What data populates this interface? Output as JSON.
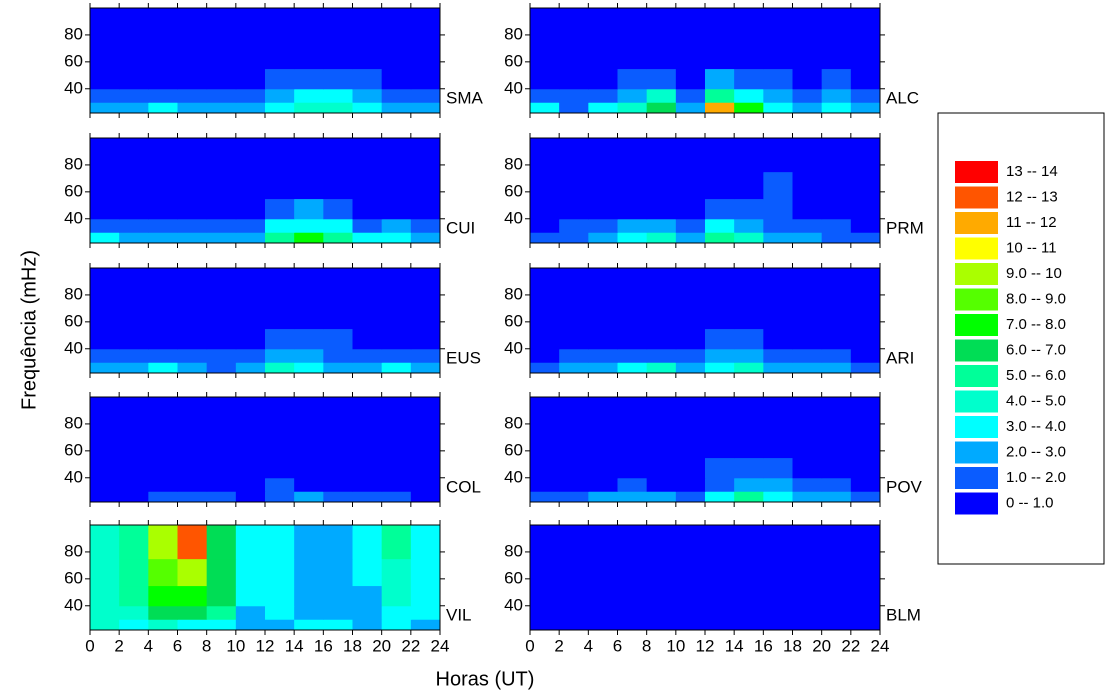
{
  "chart_data": {
    "type": "heatmap",
    "xlabel": "Horas (UT)",
    "ylabel": "Frequência (mHz)",
    "xlim": [
      0,
      24
    ],
    "xticks": [
      0,
      2,
      4,
      6,
      8,
      10,
      12,
      14,
      16,
      18,
      20,
      22,
      24
    ],
    "ylim": [
      22,
      100
    ],
    "yticks": [
      40,
      60,
      80
    ],
    "x_bins": [
      0,
      2,
      4,
      6,
      8,
      10,
      12,
      14,
      16,
      18,
      20,
      22,
      24
    ],
    "y_bins": [
      22,
      30,
      40,
      55,
      75,
      100
    ],
    "panels": [
      {
        "name": "SMA",
        "values": [
          [
            2.5,
            2,
            3,
            2,
            2.5,
            2,
            3,
            4,
            4,
            3,
            2.5,
            2
          ],
          [
            1.5,
            1,
            1.5,
            1,
            1,
            1,
            2,
            3,
            3,
            2,
            1.5,
            1
          ],
          [
            0.5,
            0.5,
            0.8,
            0.5,
            0.5,
            0.5,
            1.2,
            1.8,
            1.5,
            1,
            0.8,
            0.5
          ],
          [
            0.3,
            0.6,
            0.3,
            0.3,
            0.3,
            0.3,
            0.5,
            0.6,
            0.5,
            0.3,
            0.3,
            0.3
          ],
          [
            0.2,
            0.2,
            0.2,
            0.2,
            0.2,
            0.2,
            0.2,
            0.2,
            0.2,
            0.2,
            0.2,
            0.2
          ]
        ]
      },
      {
        "name": "ALC",
        "values": [
          [
            3,
            1.5,
            3,
            4,
            6,
            2.5,
            11,
            7,
            3,
            2,
            3,
            2
          ],
          [
            1.5,
            1,
            1.5,
            2.5,
            4,
            1.5,
            5,
            3.5,
            2,
            1,
            2,
            1.2
          ],
          [
            0.5,
            0.5,
            0.8,
            1,
            1.5,
            0.8,
            2,
            1.8,
            1,
            0.5,
            1,
            0.6
          ],
          [
            0.3,
            0.3,
            0.3,
            0.5,
            0.6,
            0.5,
            0.8,
            0.8,
            0.5,
            0.3,
            0.4,
            0.3
          ],
          [
            0.3,
            0.3,
            0.3,
            0.3,
            0.3,
            0.3,
            0.4,
            0.3,
            0.3,
            0.3,
            0.3,
            0.3
          ]
        ]
      },
      {
        "name": "CUI",
        "values": [
          [
            3.5,
            2,
            2.5,
            2,
            2,
            2.5,
            5,
            7,
            5,
            3,
            3,
            2
          ],
          [
            1.5,
            1,
            1,
            1,
            1,
            1.5,
            3,
            3.5,
            3,
            1.5,
            2,
            1
          ],
          [
            0.5,
            0.5,
            0.5,
            0.5,
            0.5,
            0.8,
            1.5,
            2,
            1.8,
            0.8,
            0.8,
            0.5
          ],
          [
            0.3,
            0.3,
            0.3,
            0.3,
            0.3,
            0.4,
            0.6,
            0.8,
            0.6,
            0.3,
            0.3,
            0.3
          ],
          [
            0.2,
            0.2,
            0.2,
            0.2,
            0.2,
            0.2,
            0.2,
            0.2,
            0.2,
            0.2,
            0.2,
            0.2
          ]
        ]
      },
      {
        "name": "PRM",
        "values": [
          [
            1.5,
            1.5,
            2.5,
            3.5,
            4,
            2,
            5,
            4,
            2.5,
            2,
            1.5,
            1.5
          ],
          [
            0.8,
            1,
            1.5,
            2,
            2,
            1.2,
            3,
            2.5,
            1.5,
            1,
            1,
            0.8
          ],
          [
            0.3,
            0.5,
            0.5,
            0.8,
            0.8,
            0.5,
            1.5,
            1.5,
            1.2,
            0.5,
            0.5,
            0.3
          ],
          [
            0.2,
            0.3,
            0.3,
            0.3,
            0.3,
            0.3,
            0.5,
            0.8,
            1,
            0.3,
            0.3,
            0.2
          ],
          [
            0.2,
            0.2,
            0.2,
            0.2,
            0.2,
            0.2,
            0.2,
            0.4,
            0.6,
            0.2,
            0.2,
            0.2
          ]
        ]
      },
      {
        "name": "EUS",
        "values": [
          [
            2.5,
            2,
            3,
            2,
            1.5,
            2,
            4,
            3,
            2,
            2.5,
            3,
            2
          ],
          [
            1.2,
            1,
            1.5,
            1,
            1,
            1,
            2,
            2,
            1.5,
            1.5,
            1.5,
            1
          ],
          [
            0.8,
            0.8,
            0.8,
            0.8,
            0.7,
            0.8,
            1.2,
            1.5,
            1,
            0.8,
            0.8,
            0.7
          ],
          [
            0.6,
            0.8,
            0.7,
            0.8,
            0.6,
            0.7,
            0.8,
            0.8,
            0.8,
            0.6,
            0.7,
            0.6
          ],
          [
            0.7,
            0.8,
            0.6,
            0.7,
            0.6,
            0.8,
            0.7,
            0.6,
            0.6,
            0.7,
            0.6,
            0.6
          ]
        ]
      },
      {
        "name": "ARI",
        "values": [
          [
            1.5,
            2,
            2,
            3,
            4,
            2,
            3.5,
            4,
            2.5,
            2,
            2,
            1.5
          ],
          [
            0.8,
            1,
            1,
            1.5,
            1.5,
            1,
            2,
            2,
            1.5,
            1,
            1,
            0.8
          ],
          [
            0.3,
            0.5,
            0.5,
            0.5,
            0.5,
            0.5,
            1,
            1,
            0.8,
            0.5,
            0.5,
            0.3
          ],
          [
            0.3,
            0.3,
            0.3,
            0.3,
            0.3,
            0.3,
            0.5,
            0.5,
            0.5,
            0.3,
            0.3,
            0.3
          ],
          [
            0.3,
            0.3,
            0.3,
            0.3,
            0.3,
            0.3,
            0.3,
            0.3,
            0.5,
            0.3,
            0.3,
            0.3
          ]
        ]
      },
      {
        "name": "COL",
        "values": [
          [
            0.8,
            0.8,
            1,
            1,
            1,
            0.8,
            1.5,
            2,
            1,
            1,
            1,
            0.8
          ],
          [
            0.3,
            0.3,
            0.5,
            0.5,
            0.5,
            0.5,
            1,
            0.8,
            0.5,
            0.5,
            0.5,
            0.3
          ],
          [
            0.2,
            0.2,
            0.3,
            0.3,
            0.3,
            0.3,
            0.4,
            0.3,
            0.3,
            0.3,
            0.3,
            0.2
          ],
          [
            0.2,
            0.2,
            0.2,
            0.2,
            0.2,
            0.2,
            0.3,
            0.2,
            0.2,
            0.2,
            0.2,
            0.2
          ],
          [
            0.2,
            0.2,
            0.2,
            0.2,
            0.2,
            0.2,
            0.2,
            0.2,
            0.2,
            0.2,
            0.2,
            0.2
          ]
        ]
      },
      {
        "name": "POV",
        "values": [
          [
            1.5,
            1.5,
            2,
            2.5,
            2,
            1.5,
            3,
            5,
            3,
            2,
            2,
            1.5
          ],
          [
            0.5,
            0.5,
            0.8,
            1,
            0.8,
            0.6,
            1.8,
            2.5,
            2,
            1,
            1,
            0.5
          ],
          [
            0.2,
            0.3,
            0.3,
            0.3,
            0.3,
            0.3,
            1,
            1.5,
            1.2,
            0.5,
            0.5,
            0.3
          ],
          [
            0.2,
            0.2,
            0.2,
            0.2,
            0.2,
            0.2,
            0.5,
            0.8,
            0.5,
            0.2,
            0.2,
            0.2
          ],
          [
            0.2,
            0.2,
            0.2,
            0.2,
            0.2,
            0.2,
            0.2,
            0.2,
            0.2,
            0.2,
            0.2,
            0.2
          ]
        ]
      },
      {
        "name": "VIL",
        "values": [
          [
            4,
            3.5,
            4,
            3.5,
            3,
            2,
            2.5,
            3.5,
            3,
            2.5,
            3,
            2.5
          ],
          [
            4,
            4,
            6,
            6,
            5,
            2.5,
            3,
            2,
            2.5,
            2.5,
            3.5,
            3
          ],
          [
            4.5,
            5,
            7,
            7,
            6,
            3,
            3,
            2,
            2,
            2.5,
            4,
            3
          ],
          [
            4.5,
            5,
            8,
            9,
            6,
            3,
            3.5,
            2.5,
            2.5,
            3,
            4.5,
            3
          ],
          [
            4,
            5,
            9,
            12,
            6,
            3,
            3,
            2.5,
            2.5,
            3,
            5,
            3
          ]
        ]
      },
      {
        "name": "BLM",
        "values": [
          [
            0.8,
            0.6,
            0.8,
            0.7,
            0.6,
            0.6,
            0.8,
            0.7,
            0.6,
            0.7,
            0.8,
            0.6
          ],
          [
            0.5,
            0.4,
            0.5,
            0.5,
            0.4,
            0.4,
            0.5,
            0.5,
            0.4,
            0.5,
            0.5,
            0.4
          ],
          [
            0.3,
            0.3,
            0.4,
            0.3,
            0.3,
            0.3,
            0.4,
            0.3,
            0.3,
            0.3,
            0.4,
            0.3
          ],
          [
            0.3,
            0.3,
            0.3,
            0.3,
            0.3,
            0.3,
            0.3,
            0.3,
            0.3,
            0.3,
            0.3,
            0.3
          ],
          [
            0.3,
            0.3,
            0.3,
            0.3,
            0.3,
            0.3,
            0.3,
            0.3,
            0.3,
            0.3,
            0.3,
            0.3
          ]
        ]
      }
    ],
    "legend": [
      {
        "label": "13 -- 14",
        "from": 13,
        "to": 14,
        "color": "#ff0000"
      },
      {
        "label": "12 -- 13",
        "from": 12,
        "to": 13,
        "color": "#ff5500"
      },
      {
        "label": "11 -- 12",
        "from": 11,
        "to": 12,
        "color": "#ffaa00"
      },
      {
        "label": "10 -- 11",
        "from": 10,
        "to": 11,
        "color": "#ffff00"
      },
      {
        "label": "9.0 -- 10",
        "from": 9,
        "to": 10,
        "color": "#aaff00"
      },
      {
        "label": "8.0 -- 9.0",
        "from": 8,
        "to": 9,
        "color": "#55ff00"
      },
      {
        "label": "7.0 -- 8.0",
        "from": 7,
        "to": 8,
        "color": "#00ff00"
      },
      {
        "label": "6.0 -- 7.0",
        "from": 6,
        "to": 7,
        "color": "#00dd55"
      },
      {
        "label": "5.0 -- 6.0",
        "from": 5,
        "to": 6,
        "color": "#00ff99"
      },
      {
        "label": "4.0 -- 5.0",
        "from": 4,
        "to": 5,
        "color": "#00ffcc"
      },
      {
        "label": "3.0 -- 4.0",
        "from": 3,
        "to": 4,
        "color": "#00ffff"
      },
      {
        "label": "2.0 -- 3.0",
        "from": 2,
        "to": 3,
        "color": "#00aaff"
      },
      {
        "label": "1.0 -- 2.0",
        "from": 1,
        "to": 2,
        "color": "#0a5cff"
      },
      {
        "label": "0 -- 1.0",
        "from": 0,
        "to": 1,
        "color": "#0000ff"
      }
    ]
  }
}
